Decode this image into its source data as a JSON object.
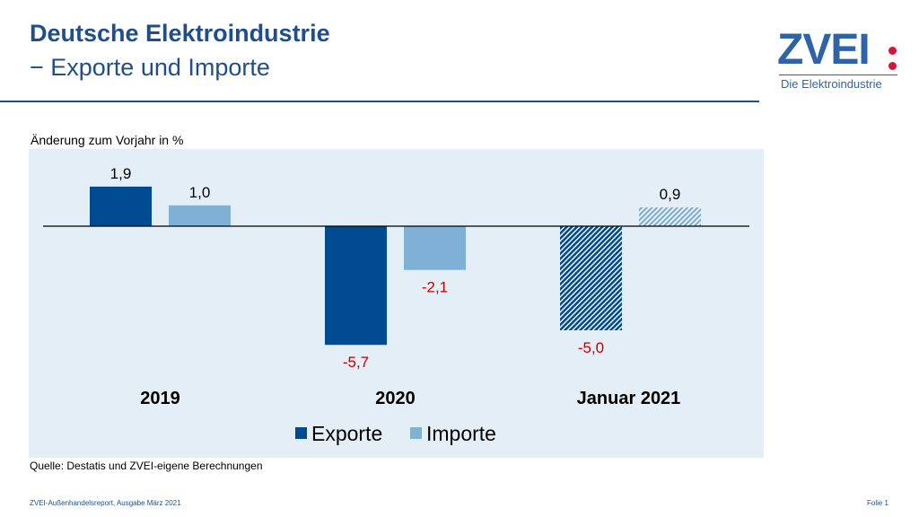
{
  "header": {
    "title": "Deutsche Elektroindustrie",
    "subtitle": "− Exporte und Importe"
  },
  "logo": {
    "text": "ZVEI",
    "tagline": "Die Elektroindustrie"
  },
  "colors": {
    "exporte": "#004a8f",
    "importe": "#7fb0d6",
    "panel": "#e3eef6",
    "negative": "#c00000"
  },
  "chart_data": {
    "type": "bar",
    "ylabel": "Änderung zum Vorjahr in %",
    "categories": [
      "2019",
      "2020",
      "Januar 2021"
    ],
    "series": [
      {
        "name": "Exporte",
        "values": [
          1.9,
          -5.7,
          -5.0
        ],
        "labels": [
          "1,9",
          "-5,7",
          "-5,0"
        ]
      },
      {
        "name": "Importe",
        "values": [
          1.0,
          -2.1,
          0.9
        ],
        "labels": [
          "1,0",
          "-2,1",
          "0,9"
        ]
      }
    ],
    "hatched_categories": [
      "Januar 2021"
    ],
    "legend": "bottom-center",
    "grid": false
  },
  "footer": {
    "source": "Quelle: Destatis und ZVEI-eigene Berechnungen",
    "report": "ZVEI-Außenhandelsreport, Ausgabe März 2021",
    "slide": "Folie 1"
  }
}
